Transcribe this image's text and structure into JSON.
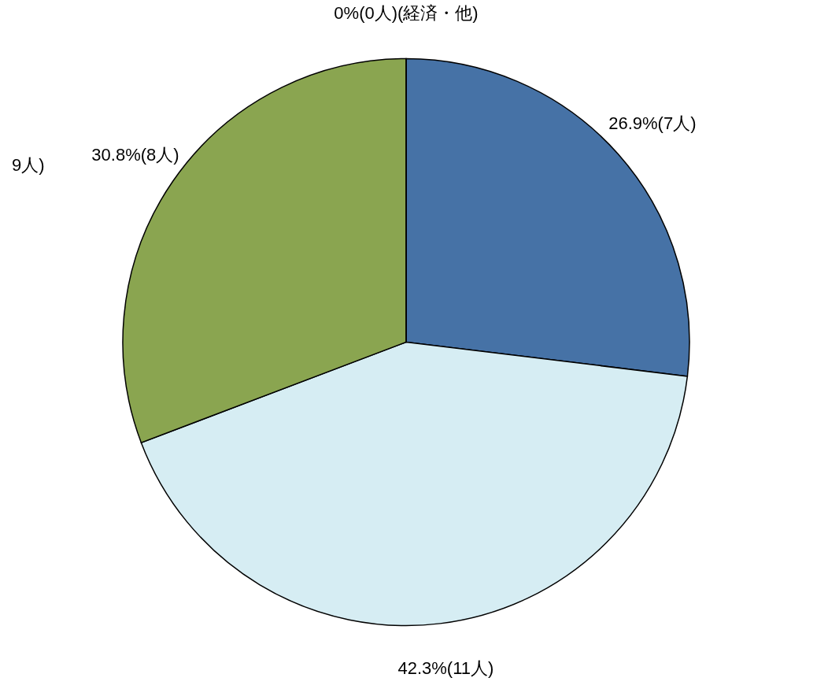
{
  "chart_data": {
    "type": "pie",
    "categories": [
      null,
      null,
      null,
      null
    ],
    "values": [
      7,
      11,
      8,
      0
    ],
    "colors": [
      "#4672a6",
      "#d6edf3",
      "#8aa550",
      "#f2a93b"
    ],
    "value_labels": [
      "26.9%(7人)",
      "42.3%(11人)",
      "30.8%(8人)",
      "0%(0人)(経済・他)"
    ],
    "annotations": [
      "9人)"
    ],
    "legend": false
  }
}
